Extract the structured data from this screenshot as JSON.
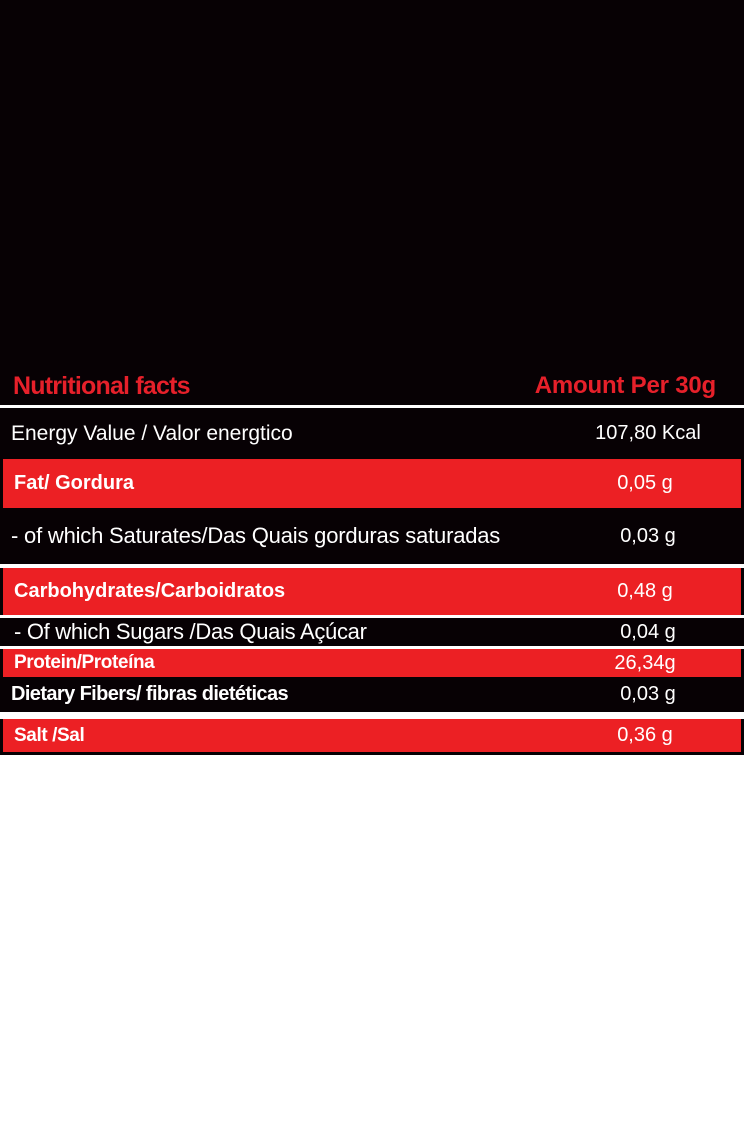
{
  "colors": {
    "header_text_red": "#e6202a",
    "row_red": "#ec2024",
    "row_black": "#070104",
    "row_text_white": "#ffffff",
    "page_background": "#ffffff"
  },
  "table": {
    "header": {
      "title": "Nutritional facts",
      "amount": "Amount Per 30g"
    },
    "rows": [
      {
        "label": "Energy Value / Valor energtico",
        "value": "107,80 Kcal"
      },
      {
        "label": "Fat/ Gordura",
        "value": "0,05 g"
      },
      {
        "label": "- of which Saturates/Das Quais gorduras saturadas",
        "value": "0,03 g"
      },
      {
        "label": "Carbohydrates/Carboidratos",
        "value": "0,48 g"
      },
      {
        "label": "- Of which Sugars /Das Quais Açúcar",
        "value": "0,04 g"
      },
      {
        "label": "Protein/Proteína",
        "value": "26,34g"
      },
      {
        "label": "Dietary Fibers/ fibras dietéticas",
        "value": "0,03 g"
      },
      {
        "label": "Salt /Sal",
        "value": "0,36 g"
      }
    ]
  }
}
